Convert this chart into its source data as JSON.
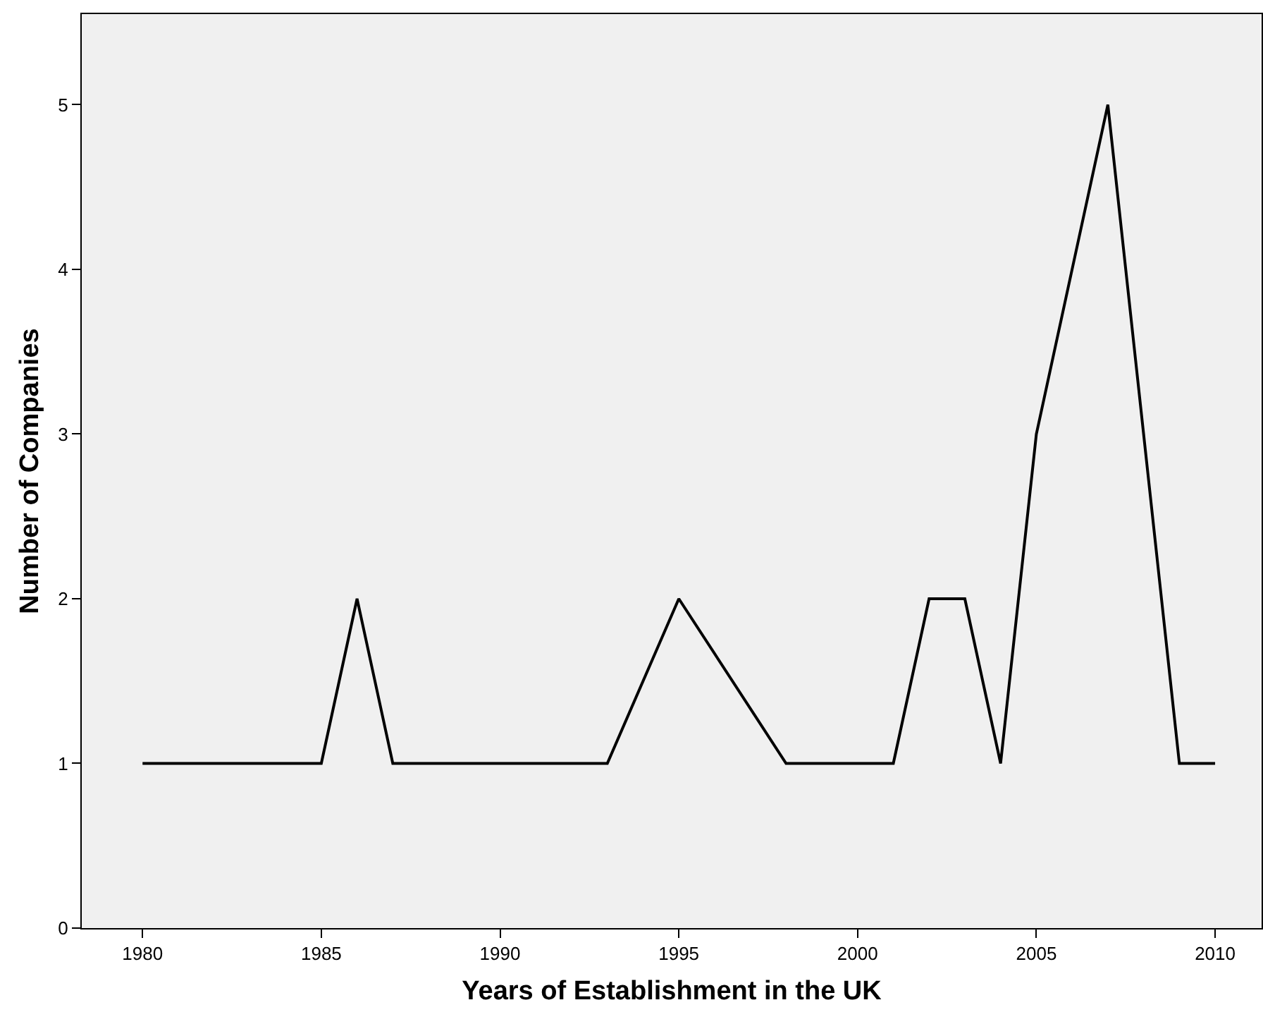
{
  "chart_data": {
    "type": "line",
    "xlabel": "Years of Establishment in the UK",
    "ylabel": "Number of Companies",
    "x": [
      1980,
      1985,
      1986,
      1987,
      1993,
      1995,
      1998,
      2001,
      2002,
      2003,
      2004,
      2005,
      2007,
      2009,
      2010
    ],
    "series": [
      {
        "color": "#000000",
        "values": [
          1,
          1,
          2,
          1,
          1,
          2,
          1,
          1,
          2,
          2,
          1,
          3,
          5,
          1,
          1
        ]
      }
    ],
    "xlim": [
      1978.3,
      2011.3
    ],
    "xticks": [
      1980,
      1985,
      1990,
      1995,
      2000,
      2005,
      2010
    ],
    "ylim": [
      0,
      5.55
    ],
    "yticks": [
      0,
      1,
      2,
      3,
      4,
      5
    ],
    "grid": false,
    "marker": "none",
    "line_style": "solid"
  }
}
